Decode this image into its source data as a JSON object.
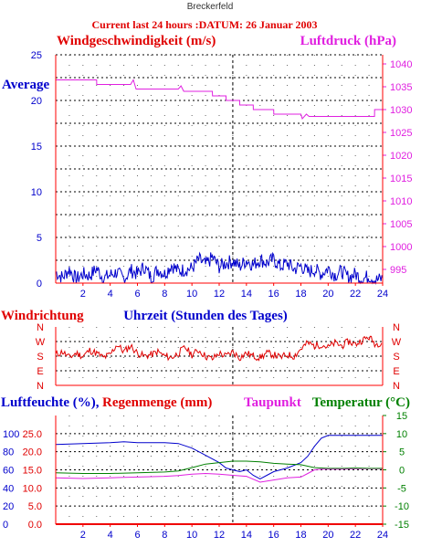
{
  "station": "Breckerfeld",
  "subtitle": "Current last 24 hours :DATUM: 26 Januar 2003",
  "colors": {
    "red": "#e00000",
    "blue": "#0000cc",
    "magenta": "#e020e0",
    "green": "#008000",
    "axis_red": "#ff0000",
    "grid": "#000000"
  },
  "x_axis": {
    "range": [
      0,
      24
    ],
    "ticks": [
      2,
      4,
      6,
      8,
      10,
      12,
      14,
      16,
      18,
      20,
      22,
      24
    ],
    "ticks_labels": [
      "2",
      "4",
      "6",
      "8",
      "10",
      "12",
      "14",
      "16",
      "18",
      "20",
      "22",
      "24"
    ],
    "label": "Uhrzeit (Stunden des Tages)",
    "now_marker_hour": 13
  },
  "chart_data": [
    {
      "type": "line",
      "id": "wind-pressure",
      "left_label": "Windgeschwindigkeit (m/s)",
      "right_label": "Luftdruck (hPa)",
      "annotation": "Average",
      "left_ylim": [
        0,
        25
      ],
      "left_ticks": [
        0,
        5,
        10,
        15,
        20,
        25
      ],
      "left_tick_labels": [
        "0",
        "5",
        "10",
        "15",
        "20",
        "25"
      ],
      "right_ylim": [
        992,
        1042
      ],
      "right_ticks": [
        995,
        1000,
        1005,
        1010,
        1015,
        1020,
        1025,
        1030,
        1035,
        1040
      ],
      "right_tick_labels": [
        "995",
        "1000",
        "1005",
        "1010",
        "1015",
        "1020",
        "1025",
        "1030",
        "1035",
        "1040"
      ],
      "grid": true,
      "series": [
        {
          "name": "Windgeschwindigkeit",
          "axis": "left",
          "color": "#0000cc",
          "x": [
            0,
            0.5,
            1,
            1.5,
            2,
            2.5,
            3,
            3.5,
            4,
            4.5,
            5,
            5.5,
            6,
            6.5,
            7,
            7.5,
            8,
            8.5,
            9,
            9.5,
            10,
            10.5,
            11,
            11.5,
            12,
            12.5,
            13,
            13.5,
            14,
            14.5,
            15,
            15.5,
            16,
            16.5,
            17,
            17.5,
            18,
            18.5,
            19,
            19.5,
            20,
            20.5,
            21,
            21.5,
            22,
            22.5,
            23,
            23.5,
            24
          ],
          "values": [
            1.2,
            0.6,
            1.5,
            0.4,
            1.0,
            0.8,
            1.6,
            0.5,
            0.9,
            1.2,
            0.4,
            1.4,
            1.0,
            1.8,
            0.6,
            1.5,
            1.0,
            2.0,
            1.3,
            1.5,
            1.6,
            2.6,
            2.0,
            2.8,
            1.8,
            2.2,
            2.4,
            1.8,
            2.5,
            2.0,
            2.6,
            2.2,
            2.6,
            1.8,
            2.2,
            1.5,
            1.9,
            1.2,
            1.5,
            1.0,
            1.6,
            0.9,
            1.3,
            0.6,
            1.0,
            0.4,
            0.8,
            0.3,
            0.5
          ]
        },
        {
          "name": "Luftdruck",
          "axis": "right",
          "color": "#e020e0",
          "x": [
            0,
            3,
            3.01,
            5.5,
            5.7,
            5.9,
            6.1,
            9,
            9.2,
            9.4,
            10.2,
            11.5,
            11.51,
            12.5,
            12.51,
            13.5,
            13.51,
            14.5,
            14.51,
            16,
            16.01,
            18,
            18.1,
            18.4,
            18.6,
            23.4,
            23.41,
            24
          ],
          "values": [
            1036.5,
            1036.5,
            1035.5,
            1035.5,
            1036.5,
            1034.5,
            1034.5,
            1034.5,
            1035.2,
            1034.0,
            1034.0,
            1034.0,
            1033.0,
            1033.0,
            1032.0,
            1032.0,
            1031.0,
            1031.0,
            1030.0,
            1030.0,
            1029.0,
            1029.0,
            1028.0,
            1029.0,
            1028.5,
            1028.5,
            1030.0,
            1030.0
          ]
        }
      ]
    },
    {
      "type": "line",
      "id": "wind-direction",
      "left_label": "Windrichtung",
      "categories": [
        "N",
        "W",
        "S",
        "E",
        "N"
      ],
      "grid": true,
      "series": [
        {
          "name": "Windrichtung",
          "color": "#e00000",
          "x": [
            0,
            0.5,
            1,
            1.5,
            2,
            2.5,
            3,
            3.5,
            4,
            4.5,
            5,
            5.5,
            6,
            6.5,
            7,
            7.5,
            8,
            8.5,
            9,
            9.5,
            10,
            10.5,
            11,
            11.5,
            12,
            12.5,
            13,
            13.5,
            14,
            14.5,
            15,
            15.5,
            16,
            16.5,
            17,
            17.5,
            18,
            18.5,
            19,
            19.5,
            20,
            20.5,
            21,
            21.5,
            22,
            22.5,
            23,
            23.5,
            24
          ],
          "values": [
            2.1,
            2.3,
            1.9,
            2.2,
            2.0,
            2.4,
            2.2,
            1.9,
            2.1,
            2.8,
            2.3,
            2.7,
            2.2,
            2.0,
            2.1,
            2.3,
            2.0,
            1.9,
            2.2,
            2.6,
            2.1,
            2.4,
            2.0,
            1.8,
            2.2,
            2.0,
            2.3,
            1.9,
            2.2,
            2.0,
            1.9,
            2.2,
            2.1,
            1.9,
            2.1,
            2.0,
            2.5,
            2.9,
            2.7,
            2.8,
            2.6,
            2.9,
            2.7,
            3.0,
            2.8,
            3.1,
            3.3,
            2.8,
            3.0
          ]
        }
      ]
    },
    {
      "type": "line",
      "id": "humidity-rain-dew-temp",
      "left_label_humidity": "Luftfeuchte (%),",
      "left_label_rain": "Regenmenge (mm)",
      "dew_label": "Taupunkt",
      "right_label": "Temperatur (°C)",
      "humidity_ylim": [
        0,
        120
      ],
      "humidity_ticks": [
        0,
        20,
        40,
        60,
        80,
        100
      ],
      "humidity_tick_labels": [
        "0",
        "20",
        "40",
        "60",
        "80",
        "100"
      ],
      "rain_ylim": [
        0,
        30
      ],
      "rain_ticks": [
        0,
        5,
        10,
        15,
        20,
        25
      ],
      "rain_tick_labels": [
        "0.0",
        "5.0",
        "10.0",
        "15.0",
        "20.0",
        "25.0"
      ],
      "temp_ylim": [
        -15,
        15
      ],
      "temp_ticks": [
        -15,
        -10,
        -5,
        0,
        5,
        10,
        15
      ],
      "temp_tick_labels": [
        "-15",
        "-10",
        "-5",
        "0",
        "5",
        "10",
        "15"
      ],
      "grid": true,
      "series": [
        {
          "name": "Luftfeuchte",
          "axis": "humidity",
          "color": "#0000cc",
          "x": [
            0,
            2,
            4,
            5,
            6,
            8,
            9,
            10,
            11,
            12,
            12.5,
            13,
            13.5,
            14,
            14.5,
            15,
            15.5,
            16,
            17,
            18,
            18.5,
            19,
            19.5,
            20,
            21,
            22,
            23,
            24
          ],
          "values": [
            88,
            89,
            90,
            91,
            90,
            90,
            89,
            84,
            76,
            68,
            62,
            60,
            58,
            60,
            54,
            50,
            54,
            58,
            62,
            68,
            75,
            86,
            95,
            98,
            98,
            98,
            98,
            98
          ]
        },
        {
          "name": "Taupunkt",
          "axis": "temp",
          "color": "#e020e0",
          "x": [
            0,
            2,
            4,
            6,
            8,
            9,
            10,
            11,
            12,
            13,
            14,
            15,
            16,
            17,
            18,
            18.5,
            19,
            19.5,
            20,
            21,
            22,
            23,
            24
          ],
          "values": [
            -2.2,
            -2.4,
            -2.2,
            -2.0,
            -1.8,
            -1.6,
            -1.2,
            -1.0,
            -1.2,
            -1.5,
            -1.8,
            -3.4,
            -2.8,
            -2.2,
            -2.0,
            -1.0,
            0.0,
            0.2,
            0.2,
            0.2,
            0.3,
            0.3,
            0.3
          ]
        },
        {
          "name": "Temperatur",
          "axis": "temp",
          "color": "#008000",
          "x": [
            0,
            2,
            4,
            6,
            8,
            9,
            10,
            11,
            12,
            13,
            14,
            15,
            16,
            17,
            18,
            19,
            20,
            21,
            22,
            23,
            24
          ],
          "values": [
            -0.8,
            -1.0,
            -1.0,
            -0.8,
            -0.6,
            -0.3,
            0.6,
            1.6,
            2.0,
            2.4,
            2.4,
            2.2,
            1.8,
            1.6,
            1.4,
            0.6,
            0.4,
            0.4,
            0.5,
            0.4,
            0.4
          ]
        },
        {
          "name": "Regenmenge",
          "axis": "rain",
          "color": "#e00000",
          "x": [
            0,
            24
          ],
          "values": [
            0,
            0
          ]
        }
      ]
    }
  ]
}
